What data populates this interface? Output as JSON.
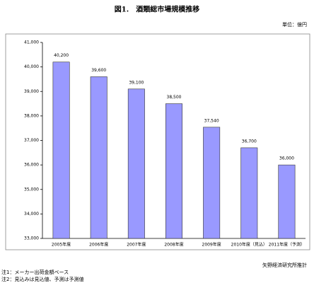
{
  "chart_data": {
    "type": "bar",
    "title": "図1.　酒類総市場規模推移",
    "unit": "単位：億円",
    "categories": [
      "2005年度",
      "2006年度",
      "2007年度",
      "2008年度",
      "2009年度",
      "2010年度（見込）",
      "2011年度（予測）"
    ],
    "values": [
      40200,
      39600,
      39100,
      38500,
      37540,
      36700,
      36000
    ],
    "value_labels": [
      "40,200",
      "39,600",
      "39,100",
      "38,500",
      "37,540",
      "36,700",
      "36,000"
    ],
    "color": "#9999ff",
    "ylim": [
      33000,
      41000
    ],
    "yticks": [
      {
        "value": 33000,
        "label": "33,000"
      },
      {
        "value": 34000,
        "label": "34,000"
      },
      {
        "value": 35000,
        "label": "35,000"
      },
      {
        "value": 36000,
        "label": "36,000"
      },
      {
        "value": 37000,
        "label": "37,000"
      },
      {
        "value": 38000,
        "label": "38,000"
      },
      {
        "value": 39000,
        "label": "39,000"
      },
      {
        "value": 40000,
        "label": "40,000"
      },
      {
        "value": 41000,
        "label": "41,000"
      }
    ],
    "grid": false,
    "source": "矢野経済研究所推計",
    "notes": [
      "注1：メーカー出荷金額ベース",
      "注2：見込みは見込値、予測は予測値"
    ]
  }
}
